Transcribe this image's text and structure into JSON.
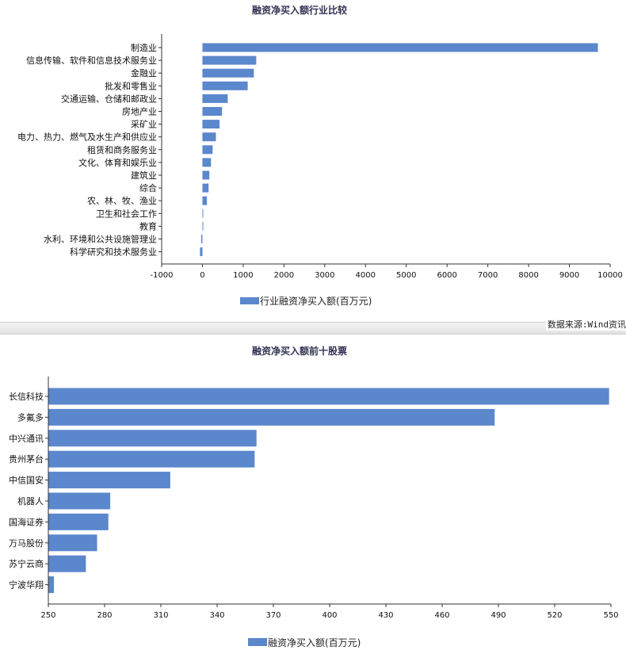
{
  "source_text": "数据来源:Wind资讯",
  "colors": {
    "bar": "#5b87cc",
    "axis": "#333333",
    "title": "#333355"
  },
  "chart_data": [
    {
      "type": "bar",
      "orientation": "horizontal",
      "title": "融资净买入额行业比较",
      "legend": "行业融资净买入额(百万元)",
      "legend_position": "bottom",
      "grid": false,
      "categories": [
        "制造业",
        "信息传输、软件和信息技术服务业",
        "金融业",
        "批发和零售业",
        "交通运输、仓储和邮政业",
        "房地产业",
        "采矿业",
        "电力、热力、燃气及水生产和供应业",
        "租赁和商务服务业",
        "文化、体育和娱乐业",
        "建筑业",
        "综合",
        "农、林、牧、渔业",
        "卫生和社会工作",
        "教育",
        "水利、环境和公共设施管理业",
        "科学研究和技术服务业"
      ],
      "values": [
        9700,
        1320,
        1260,
        1110,
        620,
        480,
        420,
        330,
        250,
        210,
        170,
        150,
        110,
        15,
        5,
        -30,
        -60
      ],
      "xlim": [
        -1000,
        10000
      ],
      "xticks": [
        -1000,
        0,
        1000,
        2000,
        3000,
        4000,
        5000,
        6000,
        7000,
        8000,
        9000,
        10000
      ]
    },
    {
      "type": "bar",
      "orientation": "horizontal",
      "title": "融资净买入额前十股票",
      "legend": "融资净买入额(百万元)",
      "legend_position": "bottom",
      "grid": false,
      "categories": [
        "长信科技",
        "多氟多",
        "中兴通讯",
        "贵州茅台",
        "中信国安",
        "机器人",
        "国海证券",
        "万马股份",
        "苏宁云商",
        "宁波华翔"
      ],
      "values": [
        549,
        488,
        361,
        360,
        315,
        283,
        282,
        276,
        270,
        253
      ],
      "xlim": [
        250,
        550
      ],
      "xticks": [
        250,
        280,
        310,
        340,
        370,
        400,
        430,
        460,
        490,
        520,
        550
      ]
    }
  ]
}
